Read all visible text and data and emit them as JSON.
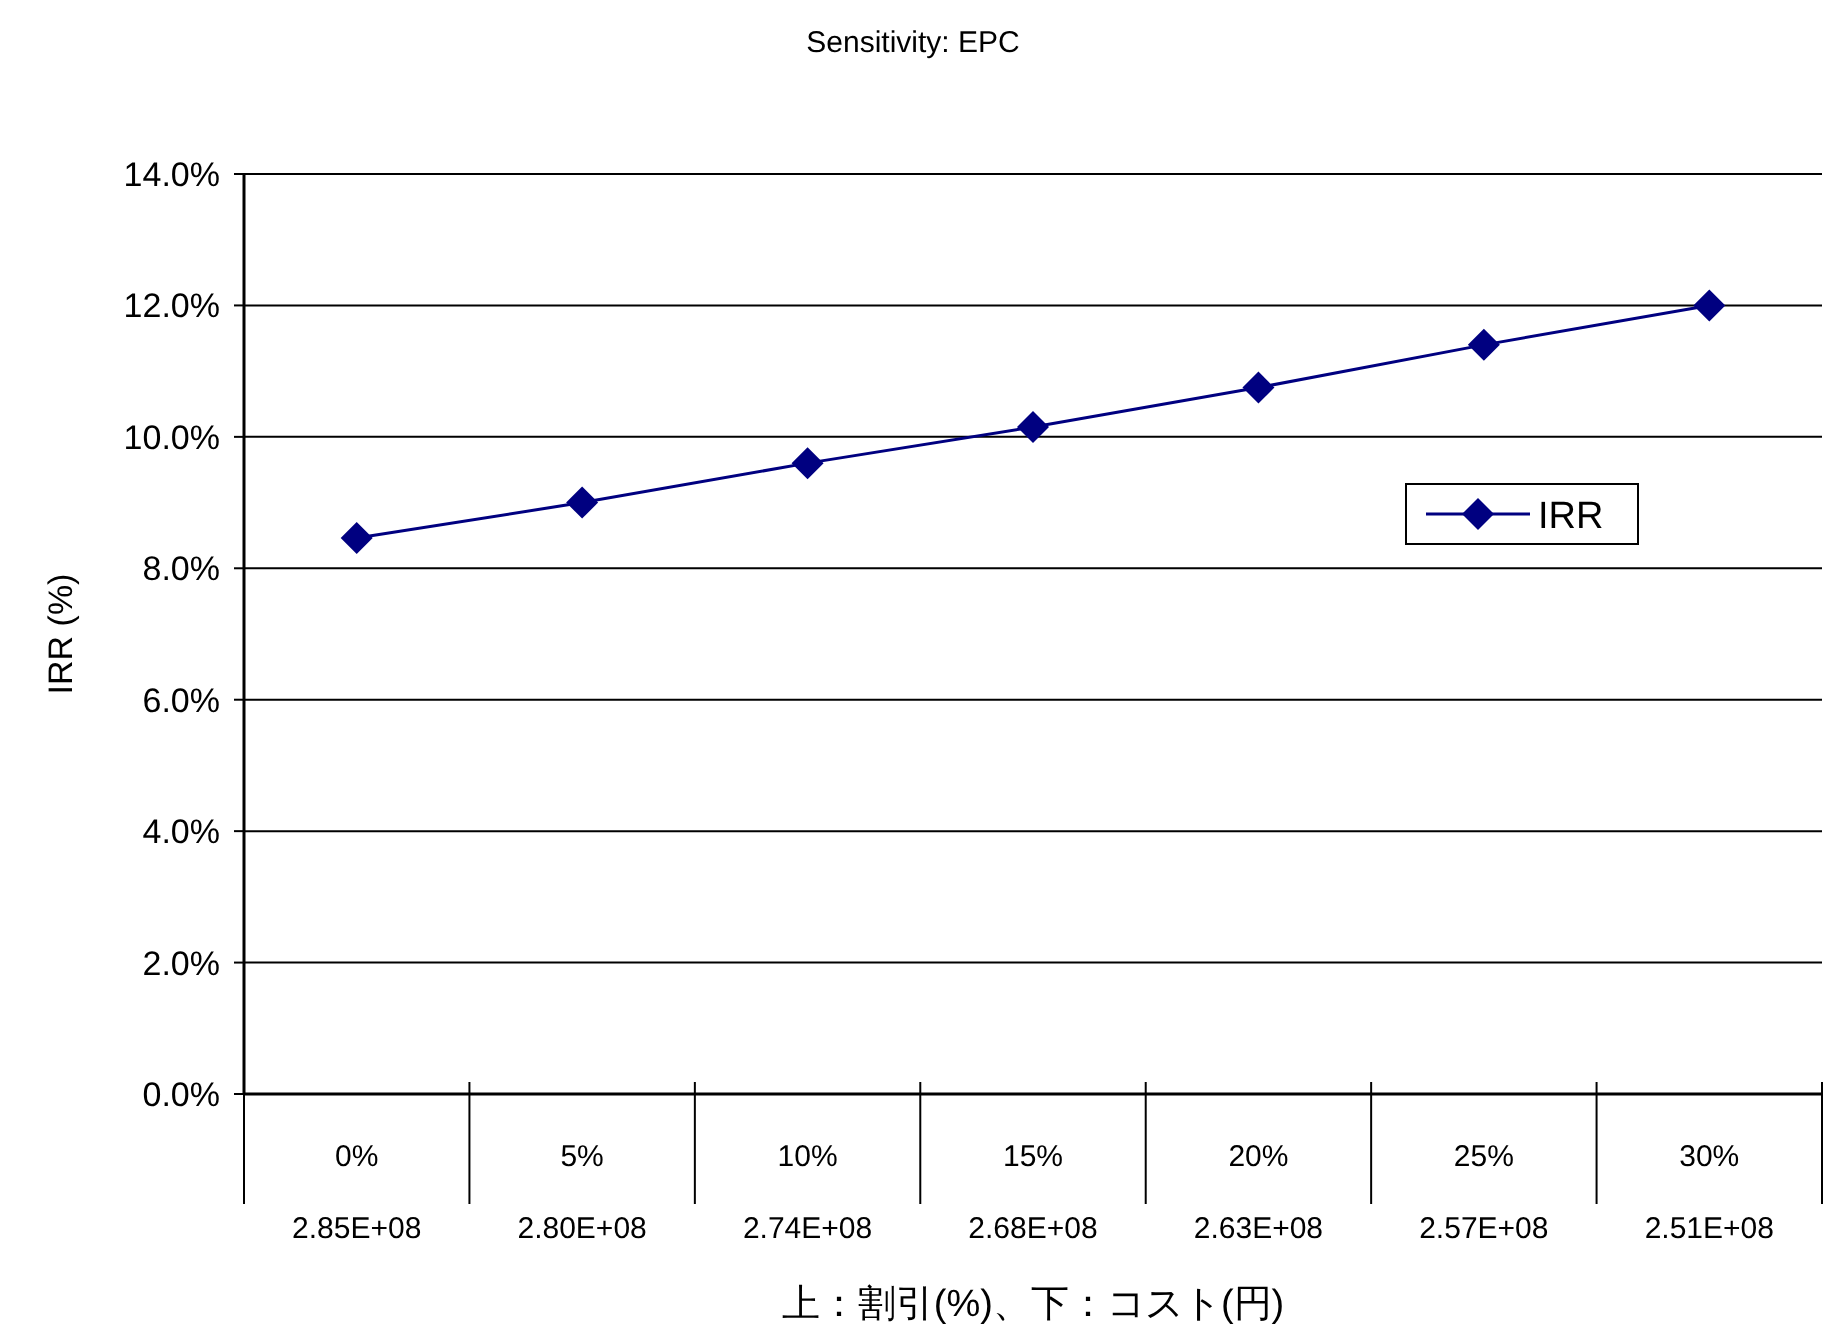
{
  "chart_data": {
    "type": "line",
    "title": "Sensitivity: EPC",
    "xlabel": "上：割引(%)、下：コスト(円)",
    "ylabel": "IRR (%)",
    "categories": [
      "0%\n2.85E+08",
      "5%\n2.80E+08",
      "10%\n2.74E+08",
      "15%\n2.68E+08",
      "20%\n2.63E+08",
      "25%\n2.57E+08",
      "30%\n2.51E+08"
    ],
    "series": [
      {
        "name": "IRR",
        "color": "#000080",
        "values": [
          8.46,
          9.0,
          9.6,
          10.15,
          10.75,
          11.4,
          12.0
        ]
      }
    ],
    "ylim": [
      0,
      14
    ],
    "yticks": [
      {
        "value": 0,
        "label": "0.0%"
      },
      {
        "value": 2,
        "label": "2.0%"
      },
      {
        "value": 4,
        "label": "4.0%"
      },
      {
        "value": 6,
        "label": "6.0%"
      },
      {
        "value": 8,
        "label": "8.0%"
      },
      {
        "value": 10,
        "label": "10.0%"
      },
      {
        "value": 12,
        "label": "12.0%"
      },
      {
        "value": 14,
        "label": "14.0%"
      }
    ],
    "grid": "y",
    "legend": "right",
    "marker": "diamond",
    "line_style": "solid"
  }
}
